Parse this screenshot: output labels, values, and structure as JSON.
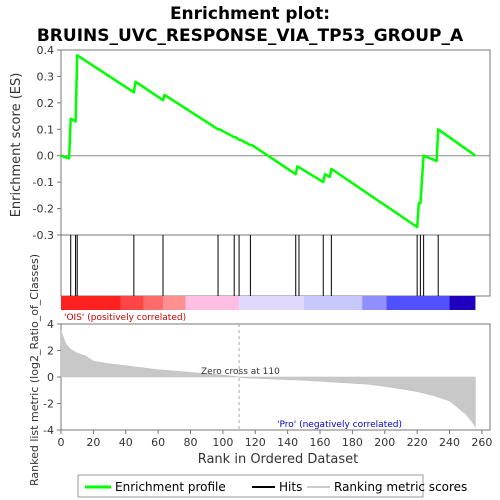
{
  "title_line1": "Enrichment plot:",
  "title_line2": "BRUINS_UVC_RESPONSE_VIA_TP53_GROUP_A",
  "chart_data": {
    "type": "line",
    "es_panel": {
      "ylabel": "Enrichment score (ES)",
      "ylim": [
        -0.3,
        0.4
      ],
      "yticks": [
        "0.4",
        "0.3",
        "0.2",
        "0.1",
        "0.0",
        "-0.1",
        "-0.2",
        "-0.3"
      ],
      "ytick_values": [
        0.4,
        0.3,
        0.2,
        0.1,
        0.0,
        -0.1,
        -0.2,
        -0.3
      ],
      "series": [
        {
          "name": "Enrichment profile",
          "color": "#00ff00",
          "x": [
            0,
            5,
            6,
            9,
            10,
            45,
            46,
            63,
            64,
            97,
            98,
            107,
            108,
            110,
            111,
            117,
            118,
            145,
            146,
            162,
            163,
            166,
            167,
            220,
            221,
            222,
            223,
            224,
            232,
            233,
            256
          ],
          "y": [
            0.0,
            -0.01,
            0.14,
            0.13,
            0.38,
            0.24,
            0.28,
            0.21,
            0.23,
            0.1,
            0.1,
            0.07,
            0.07,
            0.06,
            0.06,
            0.04,
            0.04,
            -0.07,
            -0.04,
            -0.1,
            -0.07,
            -0.08,
            -0.05,
            -0.27,
            -0.18,
            -0.18,
            -0.09,
            0.0,
            -0.02,
            0.1,
            0.0
          ]
        }
      ]
    },
    "hits": [
      6,
      9,
      10,
      45,
      63,
      97,
      107,
      110,
      117,
      145,
      147,
      162,
      167,
      220,
      222,
      224,
      233
    ],
    "heatmap_colors": [
      "#ff2020",
      "#ff4545",
      "#ff6b6b",
      "#ff9090",
      "#ffbfe5",
      "#e0d8ff",
      "#c8c8ff",
      "#8f8fff",
      "#5050ff",
      "#2000c0"
    ],
    "heatmap_breaks": [
      0,
      37,
      51,
      63,
      77,
      110,
      150,
      186,
      201,
      240,
      256
    ],
    "metric_panel": {
      "ylabel": "Ranked list metric (log2_Ratio_of_Classes)",
      "ylim": [
        -4,
        4
      ],
      "yticks": [
        "4",
        "2",
        "0",
        "-2",
        "-4"
      ],
      "ytick_values": [
        4,
        2,
        0,
        -2,
        -4
      ],
      "zero_cross_label": "Zero cross at 110",
      "zero_cross": 110,
      "pos_label": "'OIS' (positively correlated)",
      "neg_label": "'Pro' (negatively correlated)",
      "metric_points": [
        [
          0,
          3.5
        ],
        [
          3,
          2.5
        ],
        [
          6,
          2.1
        ],
        [
          10,
          1.8
        ],
        [
          15,
          1.6
        ],
        [
          20,
          1.2
        ],
        [
          30,
          1.0
        ],
        [
          40,
          0.85
        ],
        [
          50,
          0.7
        ],
        [
          60,
          0.55
        ],
        [
          70,
          0.45
        ],
        [
          80,
          0.35
        ],
        [
          90,
          0.25
        ],
        [
          100,
          0.15
        ],
        [
          110,
          0.0
        ],
        [
          111,
          -0.05
        ],
        [
          130,
          -0.15
        ],
        [
          150,
          -0.25
        ],
        [
          170,
          -0.4
        ],
        [
          190,
          -0.55
        ],
        [
          205,
          -0.8
        ],
        [
          220,
          -1.1
        ],
        [
          230,
          -1.4
        ],
        [
          240,
          -1.8
        ],
        [
          245,
          -2.3
        ],
        [
          250,
          -2.8
        ],
        [
          254,
          -3.4
        ],
        [
          256,
          -3.8
        ]
      ]
    },
    "xlabel": "Rank in Ordered Dataset",
    "xlim": [
      0,
      265
    ],
    "xticks": [
      "0",
      "20",
      "40",
      "60",
      "80",
      "100",
      "120",
      "140",
      "160",
      "180",
      "200",
      "220",
      "240",
      "260"
    ],
    "xtick_values": [
      0,
      20,
      40,
      60,
      80,
      100,
      120,
      140,
      160,
      180,
      200,
      220,
      240,
      260
    ]
  },
  "legend": {
    "items": [
      {
        "label": "Enrichment profile",
        "color": "#00ff00"
      },
      {
        "label": "Hits",
        "color": "#000000"
      },
      {
        "label": "Ranking metric scores",
        "color": "#cccccc"
      }
    ]
  }
}
